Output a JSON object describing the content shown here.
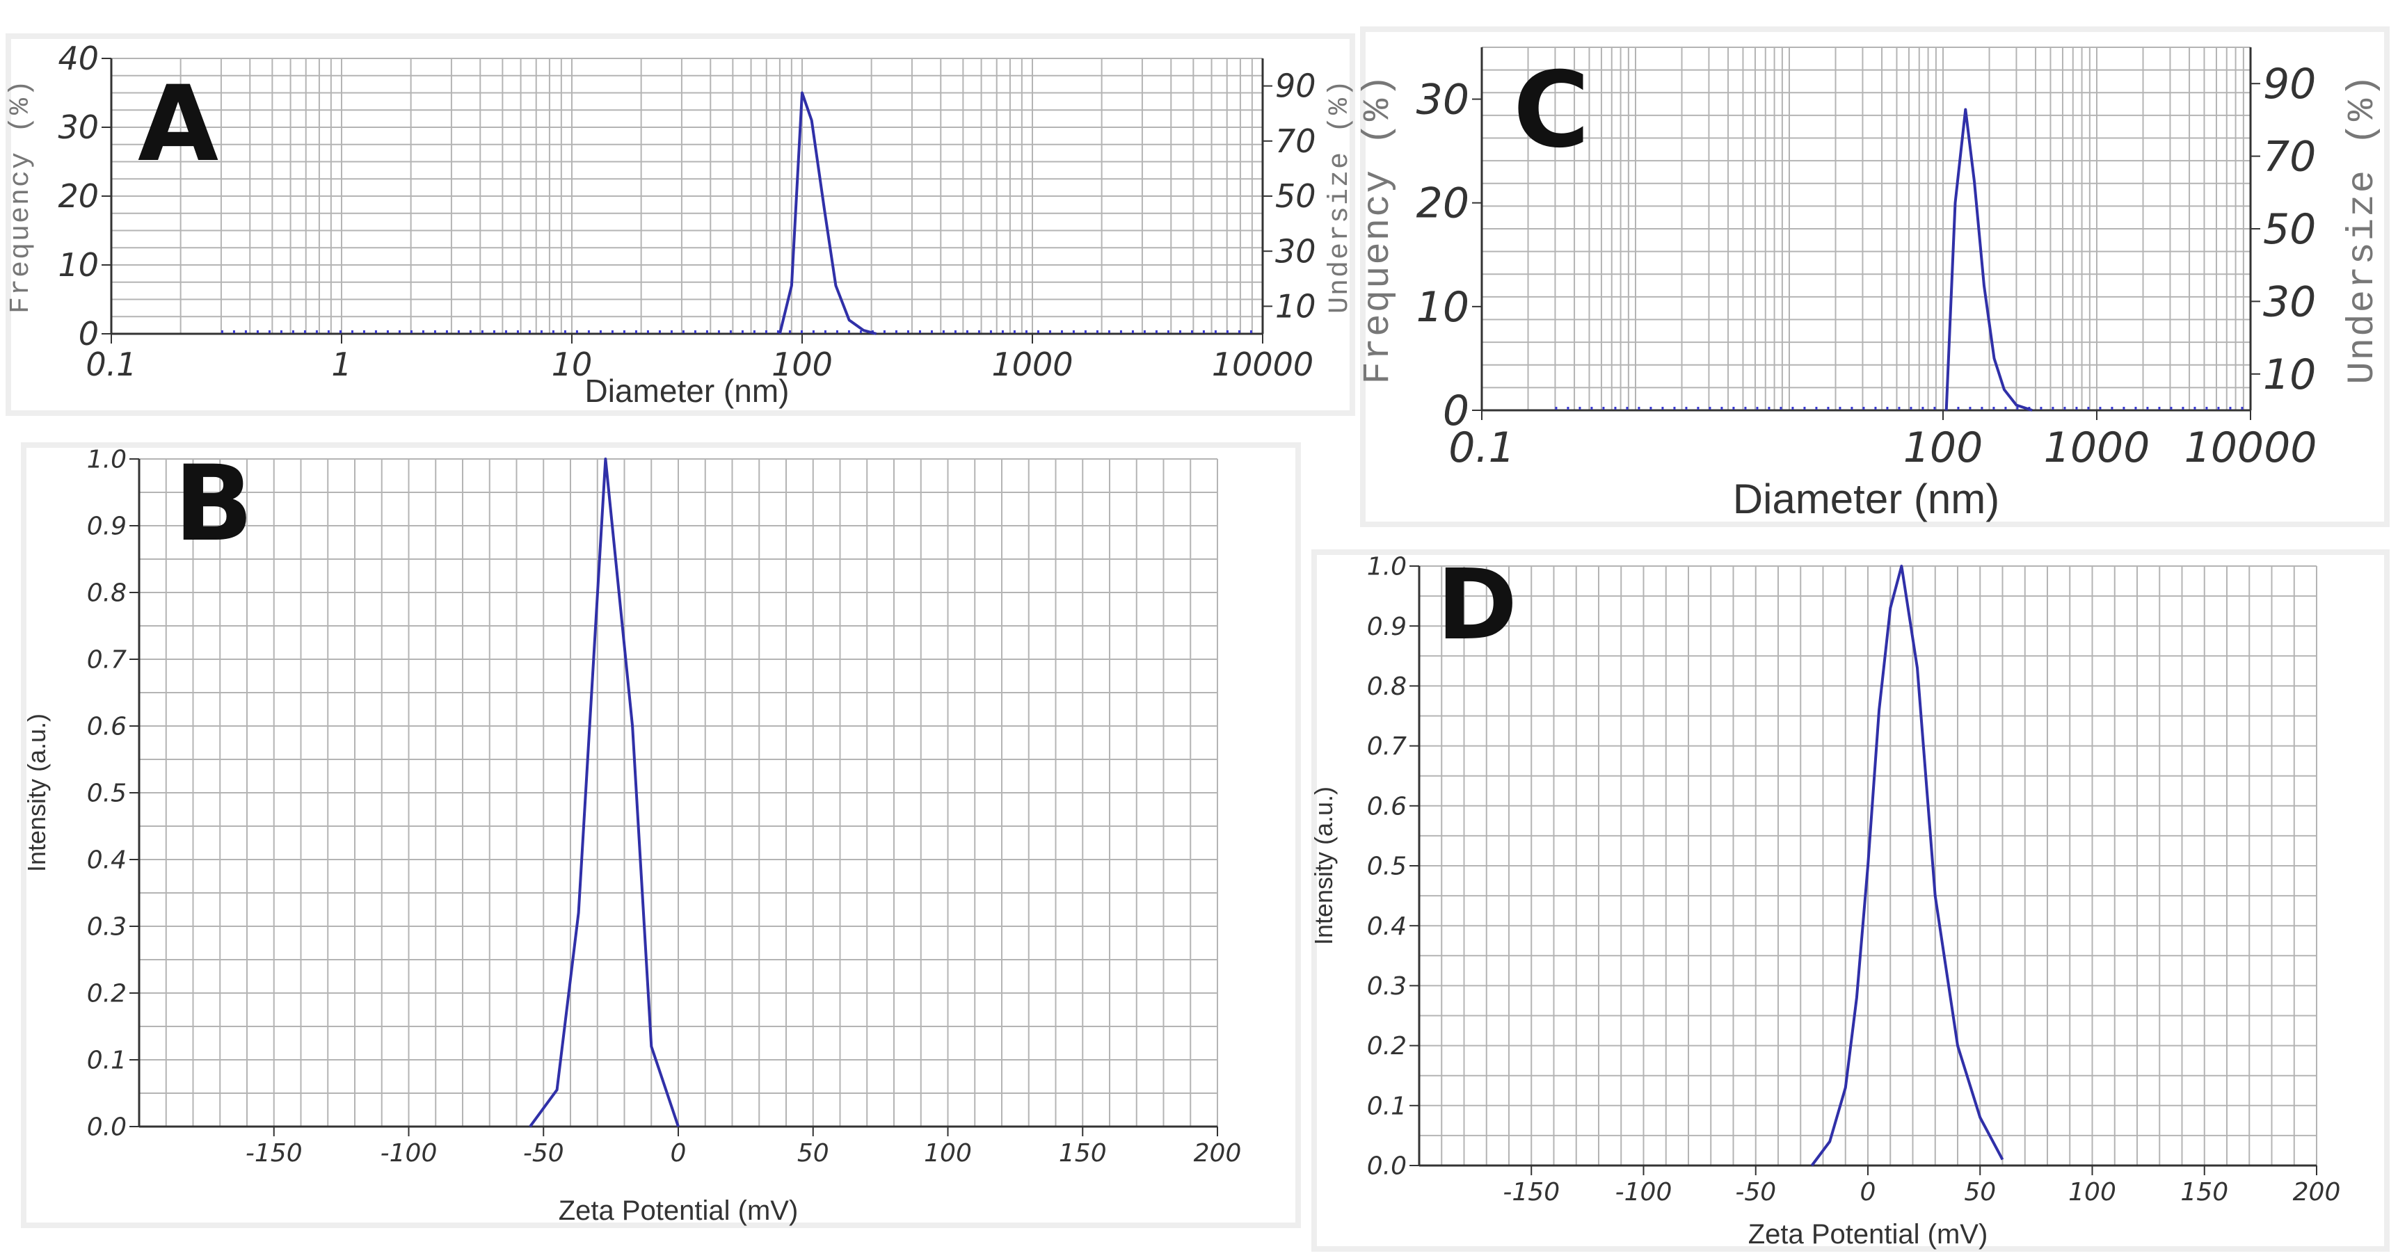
{
  "panels": {
    "a": "A",
    "b": "B",
    "c": "C",
    "d": "D"
  },
  "chart_data": [
    {
      "panel": "A",
      "type": "line",
      "xlabel": "Diameter (nm)",
      "ylabel": "Frequency (%)",
      "y2label": "Undersize (%)",
      "xscale": "log",
      "xlim": [
        0.1,
        10000
      ],
      "ylim": [
        0,
        40
      ],
      "y2lim": [
        0,
        100
      ],
      "xticks": [
        "0.1",
        "1",
        "10",
        "100",
        "1000",
        "10000"
      ],
      "yticks": [
        "0",
        "10",
        "20",
        "30",
        "40"
      ],
      "y2ticks": [
        "10",
        "30",
        "50",
        "70",
        "90"
      ],
      "grid": true,
      "line_color": "#3030a8",
      "series": [
        {
          "x": [
            80,
            90,
            100,
            110,
            125,
            140,
            160,
            185,
            210
          ],
          "y": [
            0,
            7,
            35,
            31,
            18,
            7,
            2,
            0.5,
            0
          ]
        }
      ]
    },
    {
      "panel": "B",
      "type": "line",
      "xlabel": "Zeta Potential (mV)",
      "ylabel": "Intensity (a.u.)",
      "xlim": [
        -200,
        200
      ],
      "ylim": [
        0,
        1.0
      ],
      "xticks": [
        "-150",
        "-100",
        "-50",
        "0",
        "50",
        "100",
        "150",
        "200"
      ],
      "yticks": [
        "0.0",
        "0.1",
        "0.2",
        "0.3",
        "0.4",
        "0.5",
        "0.6",
        "0.7",
        "0.8",
        "0.9",
        "1.0"
      ],
      "grid": true,
      "line_color": "#3030a8",
      "series": [
        {
          "x": [
            -55,
            -45,
            -37,
            -27,
            -17,
            -10,
            0
          ],
          "y": [
            0,
            0.055,
            0.32,
            1.0,
            0.6,
            0.12,
            0
          ]
        }
      ]
    },
    {
      "panel": "C",
      "type": "line",
      "xlabel": "Diameter (nm)",
      "ylabel": "Frequency (%)",
      "y2label": "Undersize (%)",
      "xscale": "log",
      "xlim": [
        0.1,
        10000
      ],
      "ylim": [
        0,
        35
      ],
      "y2lim": [
        0,
        100
      ],
      "xticks": [
        "0.1",
        "100",
        "1000",
        "10000"
      ],
      "yticks": [
        "0",
        "10",
        "20",
        "30"
      ],
      "y2ticks": [
        "10",
        "30",
        "50",
        "70",
        "90"
      ],
      "grid": true,
      "line_color": "#3030a8",
      "series": [
        {
          "x": [
            105,
            120,
            140,
            160,
            185,
            215,
            250,
            300,
            380
          ],
          "y": [
            0,
            20,
            29,
            22,
            12,
            5,
            2,
            0.5,
            0
          ]
        }
      ]
    },
    {
      "panel": "D",
      "type": "line",
      "xlabel": "Zeta Potential (mV)",
      "ylabel": "Intensity (a.u.)",
      "xlim": [
        -200,
        200
      ],
      "ylim": [
        0,
        1.0
      ],
      "xticks": [
        "-150",
        "-100",
        "-50",
        "0",
        "50",
        "100",
        "150",
        "200"
      ],
      "yticks": [
        "0.0",
        "0.1",
        "0.2",
        "0.3",
        "0.4",
        "0.5",
        "0.6",
        "0.7",
        "0.8",
        "0.9",
        "1.0"
      ],
      "grid": true,
      "line_color": "#3030a8",
      "series": [
        {
          "x": [
            -25,
            -17,
            -10,
            -5,
            0,
            5,
            10,
            15,
            22,
            30,
            40,
            50,
            60
          ],
          "y": [
            0,
            0.04,
            0.13,
            0.28,
            0.5,
            0.76,
            0.93,
            1.0,
            0.83,
            0.45,
            0.2,
            0.08,
            0.01
          ]
        }
      ]
    }
  ]
}
